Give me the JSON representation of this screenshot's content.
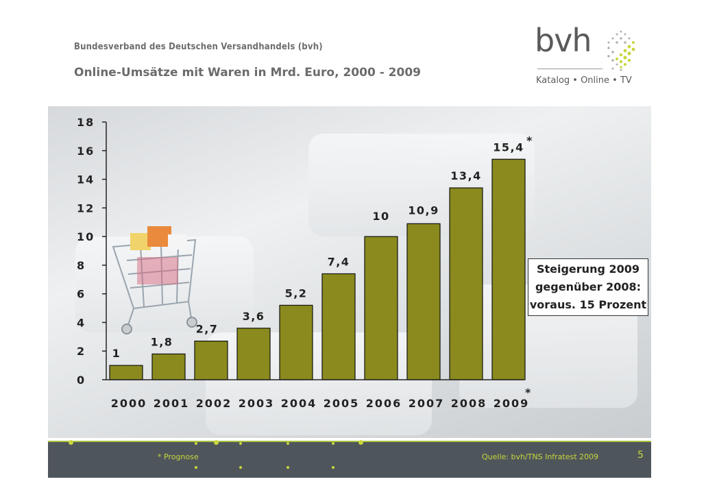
{
  "header": {
    "organization": "Bundesverband des Deutschen Versandhandels (bvh)",
    "title": "Online-Umsätze mit Waren in Mrd. Euro, 2000 - 2009"
  },
  "logo": {
    "name": "bvh",
    "tagline": "Katalog • Online • TV"
  },
  "chart_data": {
    "type": "bar",
    "title": "Online-Umsätze mit Waren in Mrd. Euro, 2000 - 2009",
    "categories": [
      "2000",
      "2001",
      "2002",
      "2003",
      "2004",
      "2005",
      "2006",
      "2007",
      "2008",
      "2009"
    ],
    "values": [
      1,
      1.8,
      2.7,
      3.6,
      5.2,
      7.4,
      10,
      10.9,
      13.4,
      15.4
    ],
    "data_labels": [
      "1",
      "1,8",
      "2,7",
      "3,6",
      "5,2",
      "7,4",
      "10",
      "10,9",
      "13,4",
      "15,4"
    ],
    "ylim": [
      0,
      18
    ],
    "yticks": [
      0,
      2,
      4,
      6,
      8,
      10,
      12,
      14,
      16,
      18
    ],
    "xlabel": "",
    "ylabel": "",
    "bar_color": "#8a8a1e",
    "forecast_marker": "*",
    "forecast_category": "2009"
  },
  "callout": {
    "lines": [
      "Steigerung 2009",
      "gegenüber 2008:",
      "voraus. 15 Prozent"
    ]
  },
  "footer": {
    "note": "* Prognose",
    "source": "Quelle: bvh/TNS Infratest 2009",
    "page": "5",
    "accent": "#c8d63c"
  }
}
